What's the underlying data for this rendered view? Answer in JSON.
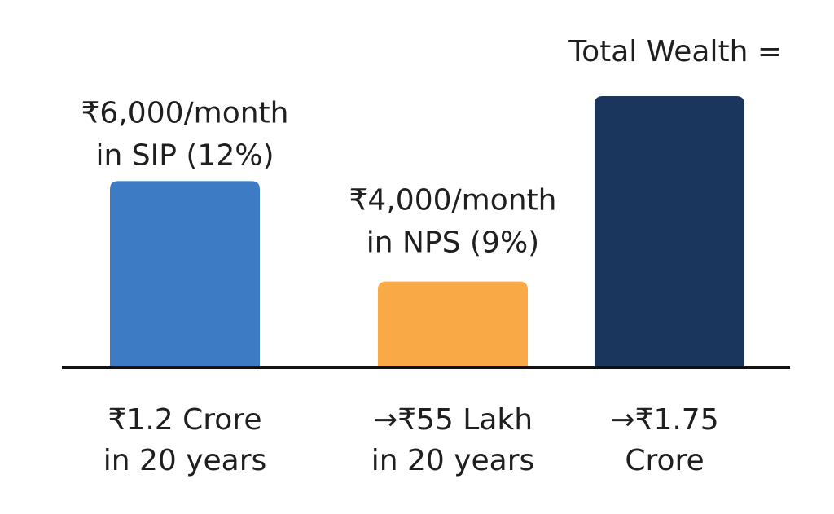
{
  "chart_data": {
    "type": "bar",
    "categories": [
      "SIP",
      "NPS",
      "Total"
    ],
    "values": [
      120,
      55,
      175
    ],
    "value_unit": "Lakh",
    "top_labels": [
      [
        "₹6,000/month",
        "in SIP (12%)"
      ],
      [
        "₹4,000/month",
        "in NPS (9%)"
      ],
      [
        "Total Wealth ="
      ]
    ],
    "bottom_labels": [
      [
        "₹1.2 Crore",
        "in 20 years"
      ],
      [
        "→₹55 Lakh",
        "in 20 years"
      ],
      [
        "→₹1.75",
        "Crore"
      ]
    ],
    "colors": [
      "#3d7cc4",
      "#f9a945",
      "#1b365d"
    ],
    "axis_color": "#111111",
    "ylim": [
      0,
      175
    ],
    "grid": false,
    "legend": "none"
  }
}
